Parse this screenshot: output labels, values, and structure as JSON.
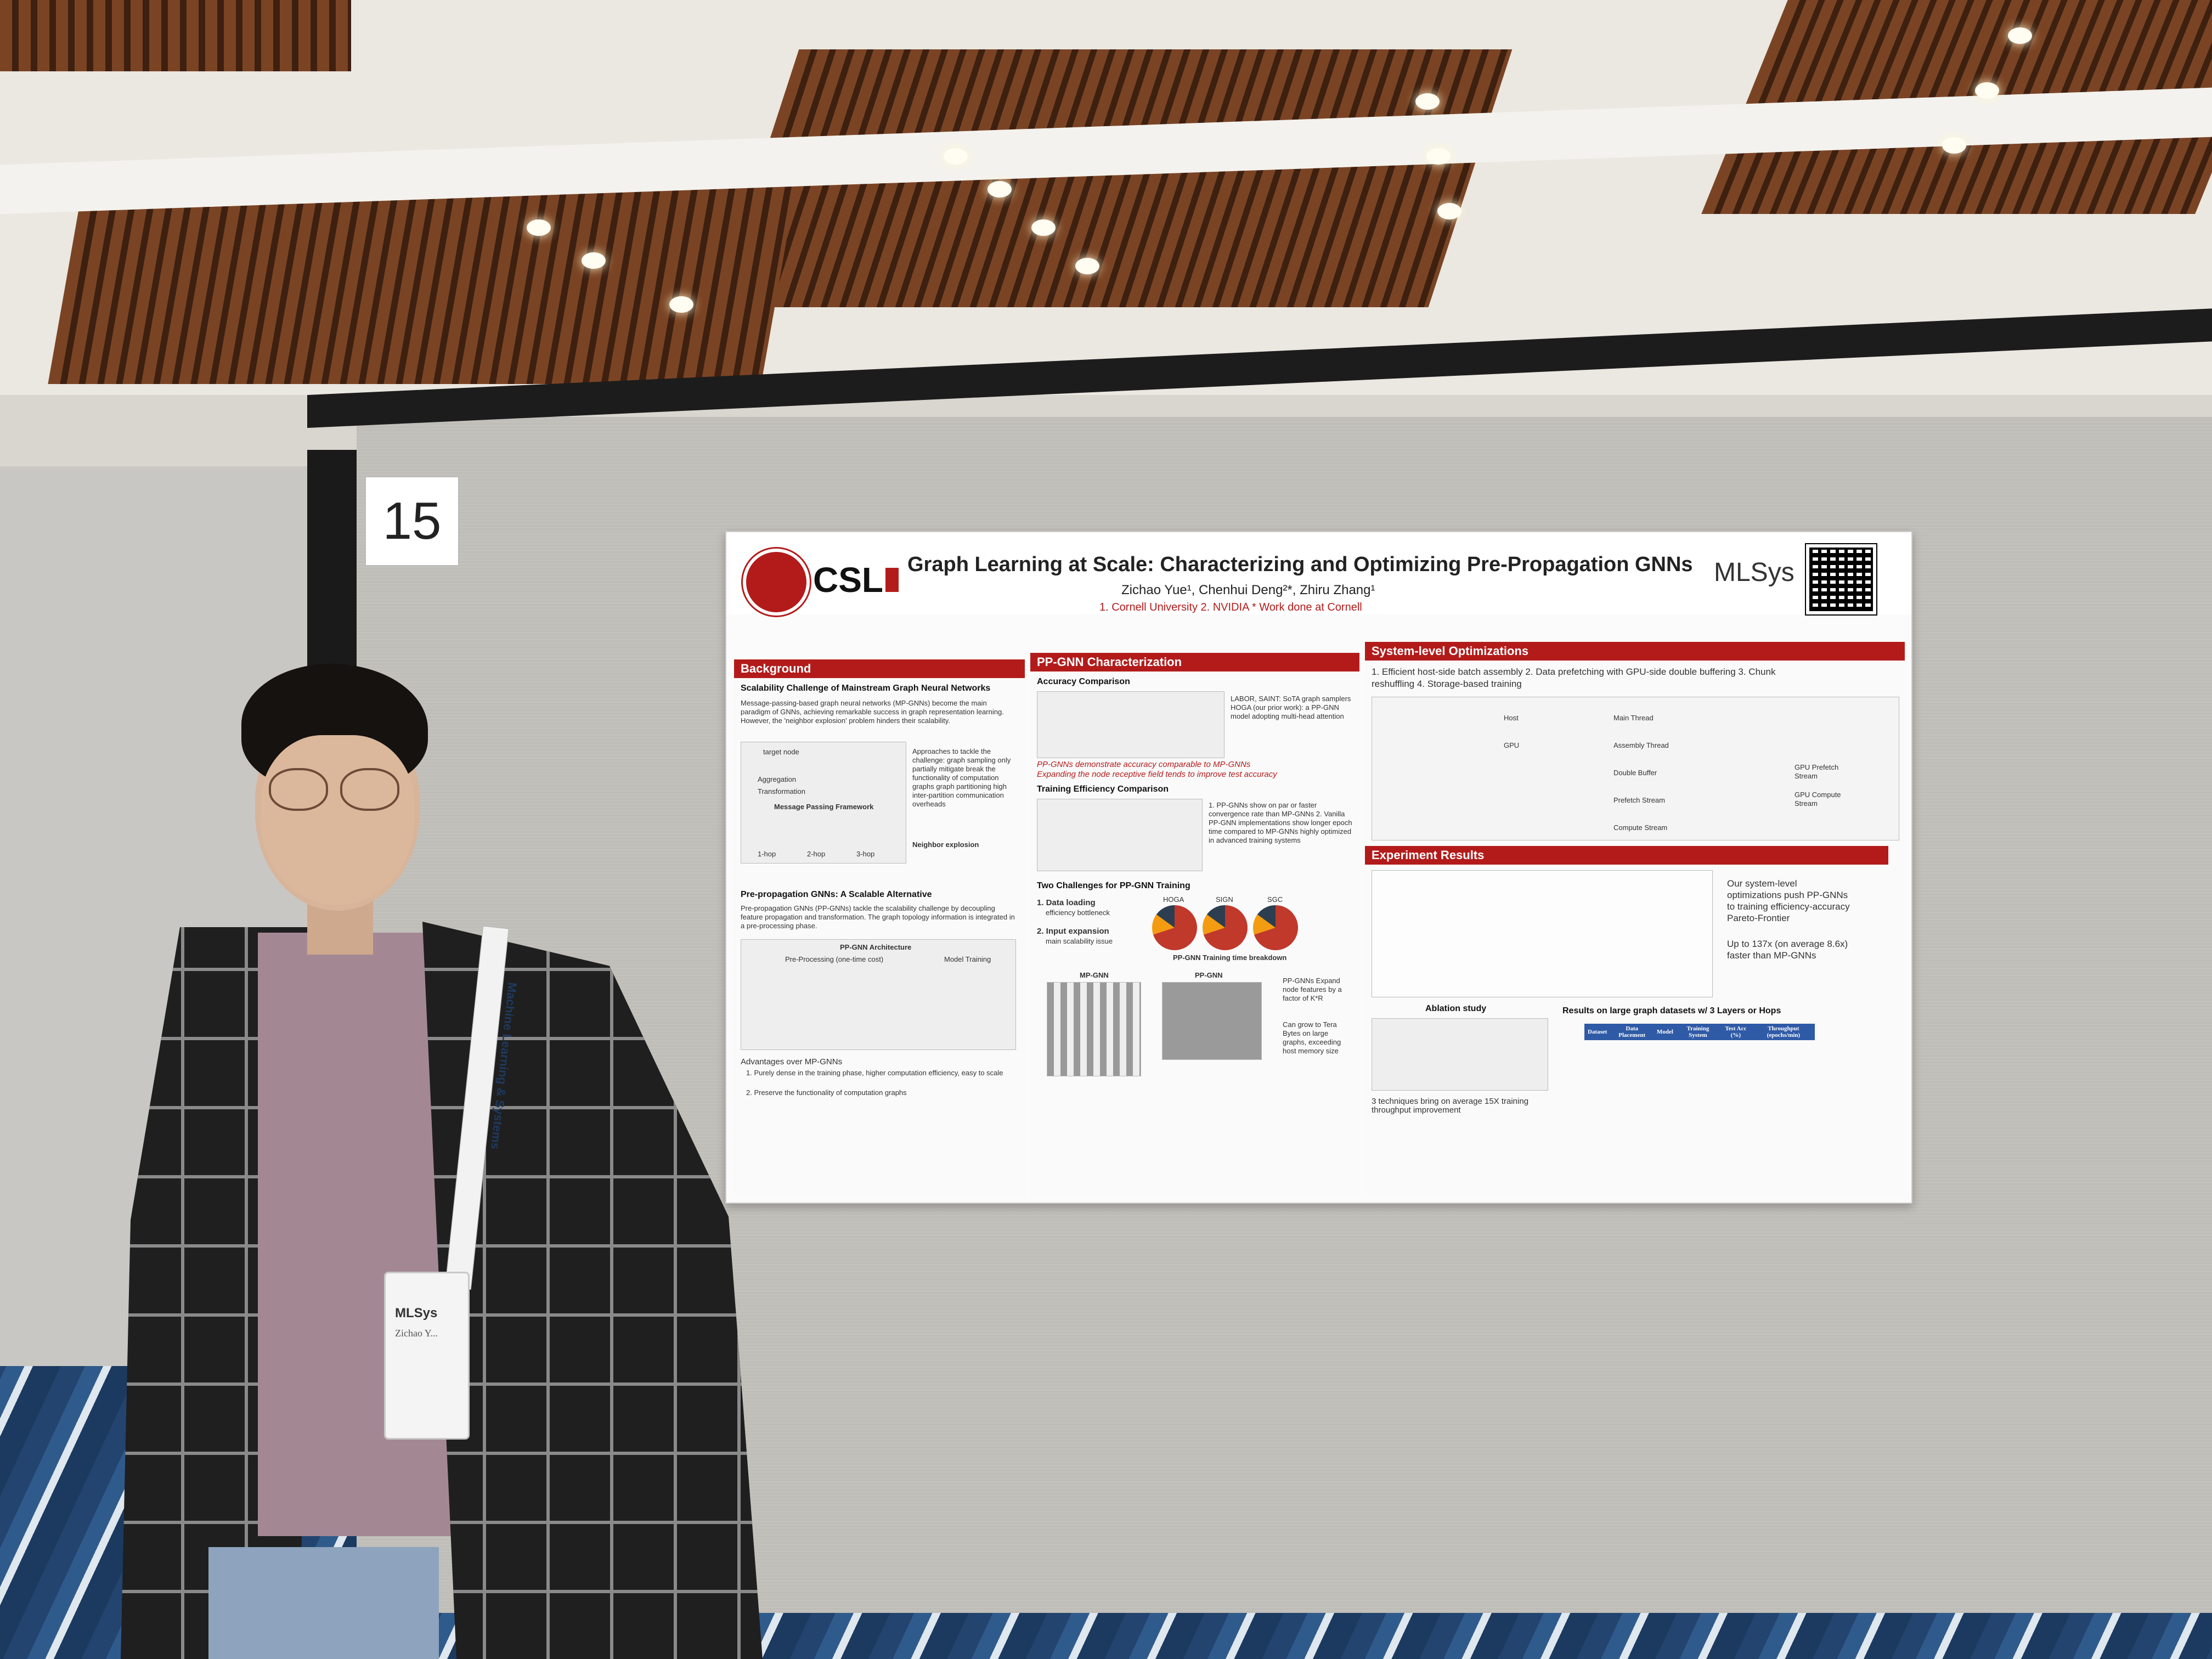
{
  "scene": {
    "panel_number": "15"
  },
  "poster": {
    "title": "Graph Learning at Scale: Characterizing and Optimizing Pre-Propagation GNNs",
    "authors": "Zichao Yue¹, Chenhui Deng²*, Zhiru Zhang¹",
    "affiliations": "1. Cornell University  2. NVIDIA  * Work done at Cornell",
    "logos": {
      "csl": "CSL",
      "conference": "MLSys"
    },
    "background": {
      "header": "Background",
      "sub1": "Scalability Challenge of Mainstream Graph Neural Networks",
      "text1": "Message-passing-based graph neural networks (MP-GNNs) become the main paradigm of GNNs, achieving remarkable success in graph representation learning. However, the 'neighbor explosion' problem hinders their scalability.",
      "fig1_labels": [
        "target node",
        "Aggregation",
        "Transformation",
        "Message Passing Framework",
        "1-hop",
        "2-hop",
        "3-hop"
      ],
      "side_text": "Approaches to tackle the challenge: graph sampling only partially mitigate break the functionality of computation graphs graph partitioning high inter-partition communication overheads",
      "neighbor_label": "Neighbor explosion",
      "sub2": "Pre-propagation GNNs: A Scalable Alternative",
      "text2": "Pre-propagation GNNs (PP-GNNs) tackle the scalability challenge by decoupling feature propagation and transformation. The graph topology information is integrated in a pre-processing phase.",
      "fig2_labels": [
        "PP-GNN Architecture",
        "Pre-Processing (one-time cost)",
        "Model Training"
      ],
      "adv_head": "Advantages over MP-GNNs",
      "adv1": "1. Purely dense in the training phase, higher computation efficiency, easy to scale",
      "adv2": "2. Preserve the functionality of computation graphs"
    },
    "characterization": {
      "header": "PP-GNN Characterization",
      "sub1": "Accuracy Comparison",
      "note1": "LABOR, SAINT: SoTA graph samplers HOGA (our prior work): a PP-GNN model adopting multi-head attention",
      "italic1": "PP-GNNs demonstrate accuracy comparable to MP-GNNs",
      "italic2": "Expanding the node receptive field tends to improve test accuracy",
      "sub2": "Training Efficiency Comparison",
      "note2": "1. PP-GNNs show on par or faster convergence rate than MP-GNNs 2. Vanilla PP-GNN implementations show longer epoch time compared to MP-GNNs highly optimized in advanced training systems",
      "sub3": "Two Challenges for PP-GNN Training",
      "challenge1": "1. Data loading",
      "challenge1b": "efficiency bottleneck",
      "challenge2": "2. Input expansion",
      "challenge2b": "main scalability issue",
      "pie_labels": [
        "HOGA",
        "SIGN",
        "SGC"
      ],
      "pie_caption": "PP-GNN Training time breakdown",
      "mp_label": "MP-GNN",
      "pp_label": "PP-GNN",
      "side_note": "PP-GNNs Expand node features by a factor of K*R",
      "side_note2": "Can grow to Tera Bytes on large graphs, exceeding host memory size"
    },
    "system": {
      "header": "System-level Optimizations",
      "list": "1. Efficient host-side batch assembly  2. Data prefetching with GPU-side double buffering  3. Chunk reshuffling  4. Storage-based training",
      "diagram_labels": [
        "Host",
        "GPU",
        "Main Thread",
        "Assembly Thread",
        "Double Buffer",
        "Prefetch Stream",
        "Compute Stream",
        "GPU Prefetch Stream",
        "GPU Compute Stream"
      ]
    },
    "experiments": {
      "header": "Experiment Results",
      "bullets": [
        "Our system-level optimizations push PP-GNNs to training efficiency-accuracy Pareto-Frontier",
        "Up to 137x (on average 8.6x) faster than MP-GNNs"
      ],
      "ablation_title": "Ablation study",
      "ablation_caption": "3 techniques bring on average 15X training throughput improvement",
      "results_title": "Results  on large graph datasets w/ 3 Layers or Hops",
      "table_headers": [
        "Dataset",
        "Data Placement",
        "Model",
        "Training System",
        "Test Acc (%)",
        "Throughput (epochs/min)"
      ]
    }
  },
  "person": {
    "lanyard_text": "Machine Learning & Systems",
    "badge_logo": "MLSys",
    "badge_name": "Zichao Y..."
  }
}
